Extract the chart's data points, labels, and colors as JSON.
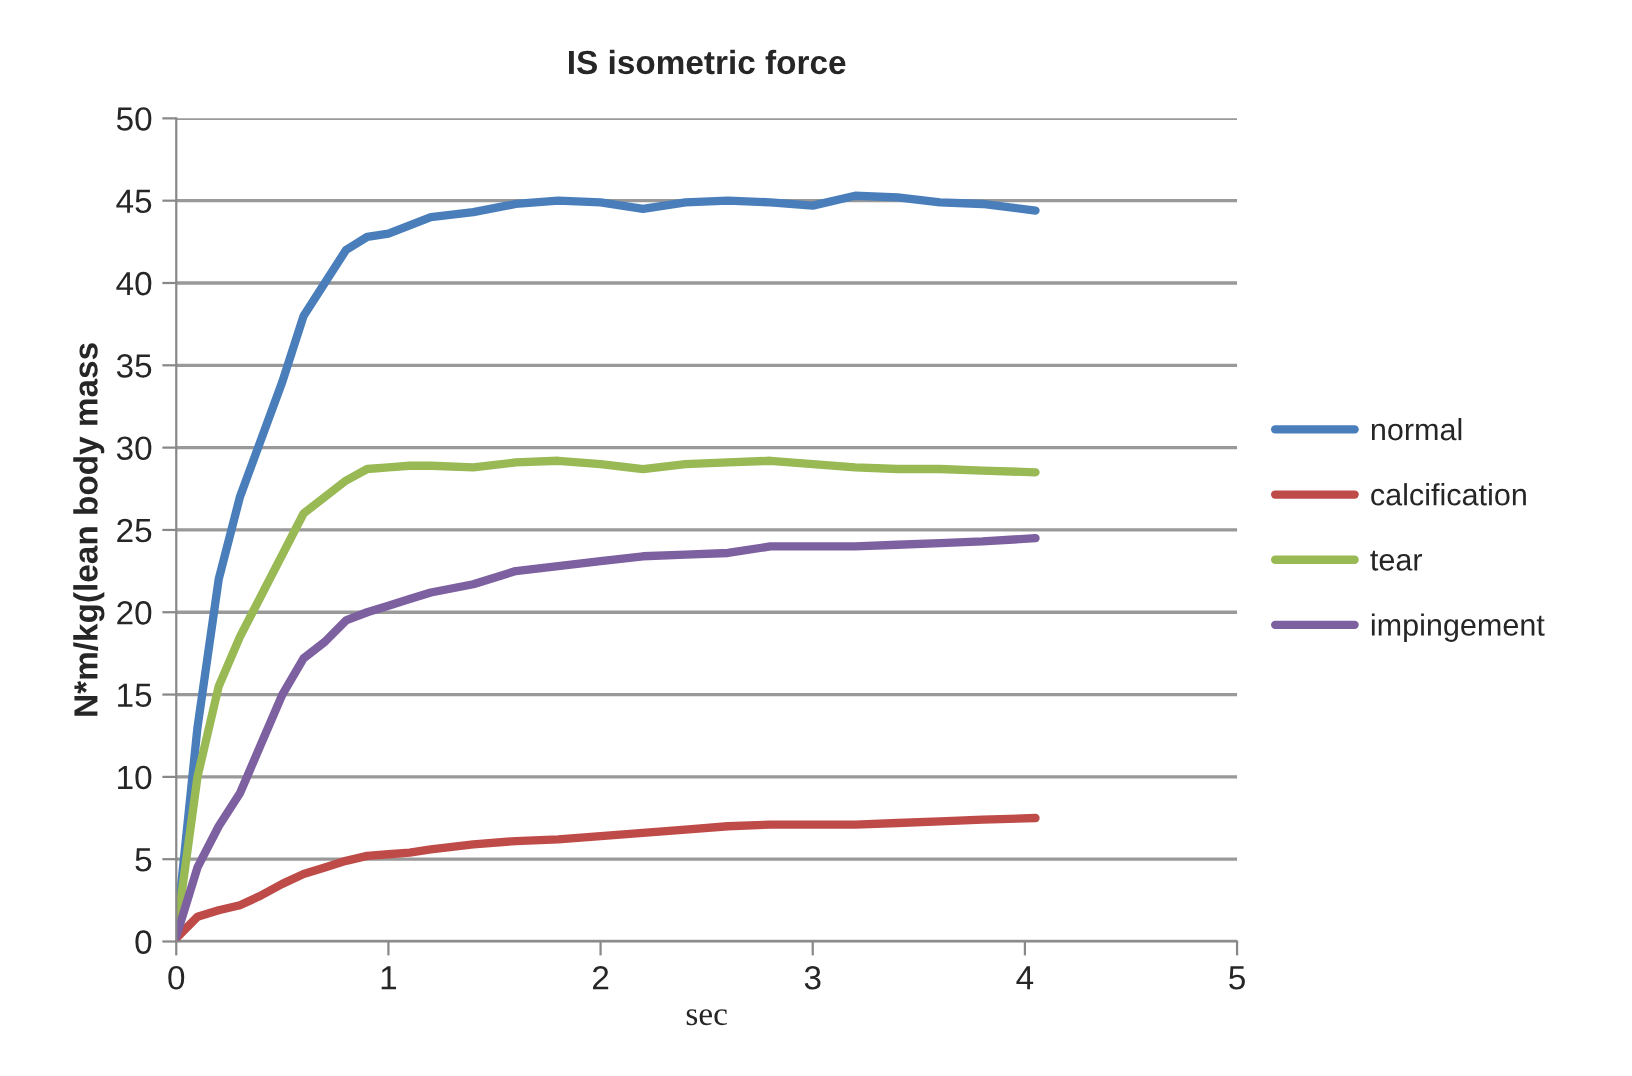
{
  "chart_data": {
    "type": "line",
    "title": "IS isometric force",
    "xlabel": "sec",
    "ylabel": "N*m/kg(lean body mass",
    "x": [
      0,
      0.1,
      0.2,
      0.3,
      0.4,
      0.5,
      0.6,
      0.7,
      0.8,
      0.9,
      1.0,
      1.1,
      1.2,
      1.4,
      1.6,
      1.8,
      2.0,
      2.2,
      2.4,
      2.6,
      2.8,
      3.0,
      3.2,
      3.4,
      3.6,
      3.8,
      4.05
    ],
    "series": [
      {
        "name": "normal",
        "color": "#4a7ebb",
        "values": [
          0.5,
          13,
          22,
          27,
          30.5,
          34,
          38,
          40,
          42,
          42.8,
          43,
          43.5,
          44,
          44.3,
          44.8,
          45,
          44.9,
          44.5,
          44.9,
          45,
          44.9,
          44.7,
          45.3,
          45.2,
          44.9,
          44.8,
          44.4
        ]
      },
      {
        "name": "calcification",
        "color": "#be4b48",
        "values": [
          0.2,
          1.5,
          1.9,
          2.2,
          2.8,
          3.5,
          4.1,
          4.5,
          4.9,
          5.2,
          5.3,
          5.4,
          5.6,
          5.9,
          6.1,
          6.2,
          6.4,
          6.6,
          6.8,
          7.0,
          7.1,
          7.1,
          7.1,
          7.2,
          7.3,
          7.4,
          7.5
        ]
      },
      {
        "name": "tear",
        "color": "#98b954",
        "values": [
          0.5,
          10,
          15.5,
          18.5,
          21,
          23.5,
          26,
          27,
          28,
          28.7,
          28.8,
          28.9,
          28.9,
          28.8,
          29.1,
          29.2,
          29,
          28.7,
          29,
          29.1,
          29.2,
          29,
          28.8,
          28.7,
          28.7,
          28.6,
          28.5
        ]
      },
      {
        "name": "impingement",
        "color": "#7d60a0",
        "values": [
          0.3,
          4.5,
          7,
          9,
          12,
          15,
          17.2,
          18.2,
          19.5,
          20,
          20.4,
          20.8,
          21.2,
          21.7,
          22.5,
          22.8,
          23.1,
          23.4,
          23.5,
          23.6,
          24,
          24,
          24,
          24.1,
          24.2,
          24.3,
          24.5
        ]
      }
    ],
    "xlim": [
      0,
      5
    ],
    "xticks": [
      0,
      1,
      2,
      3,
      4,
      5
    ],
    "ylim": [
      0,
      50
    ],
    "yticks": [
      0,
      5,
      10,
      15,
      20,
      25,
      30,
      35,
      40,
      45,
      50
    ],
    "grid": "y",
    "legend": "right",
    "marker": "none",
    "line_style": "solid"
  }
}
